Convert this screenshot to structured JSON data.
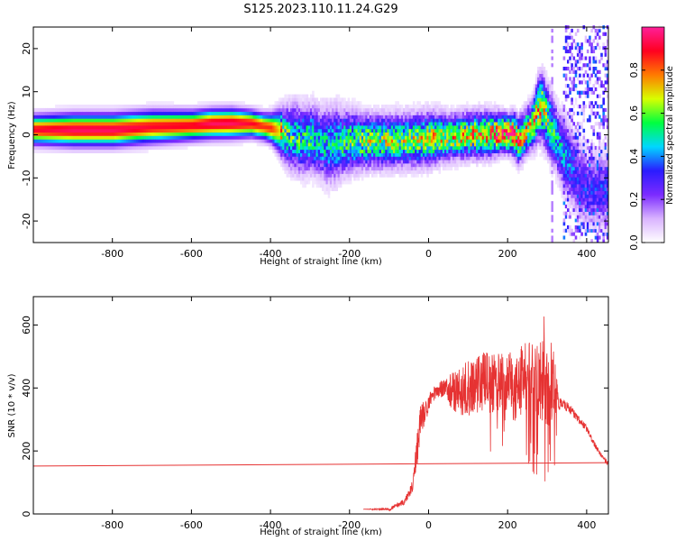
{
  "figure": {
    "title": "S125.2023.110.11.24.G29"
  },
  "chart_data": [
    {
      "type": "heatmap",
      "xlabel": "Height of straight line (km)",
      "ylabel": "Frequency (Hz)",
      "xlim": [
        -1000,
        455
      ],
      "ylim": [
        -25,
        25
      ],
      "xticks": [
        -800,
        -600,
        -400,
        -200,
        0,
        200,
        400
      ],
      "yticks": [
        -20,
        -10,
        0,
        10,
        20
      ],
      "colorbar": {
        "label": "Normalized spectral amplitude",
        "range": [
          0.0,
          1.0
        ],
        "ticks": [
          "0.0",
          "0.2",
          "0.4",
          "0.6",
          "0.8"
        ],
        "colormap": [
          "#ffffff",
          "#d9b3ff",
          "#7b2bff",
          "#2a1cff",
          "#00d7ff",
          "#00ff40",
          "#d8ff00",
          "#ff7a00",
          "#ff0020",
          "#ff1f9a"
        ]
      },
      "ridge": {
        "x": [
          -1000,
          -900,
          -800,
          -700,
          -600,
          -550,
          -500,
          -450,
          -420,
          -400,
          -380,
          -360,
          -340,
          -320,
          -300,
          -280,
          -260,
          -240,
          -220,
          -200,
          -150,
          -100,
          -50,
          0,
          50,
          100,
          150,
          190,
          205,
          215,
          225,
          235,
          245,
          255,
          265,
          275,
          285,
          295,
          305,
          315,
          325,
          340,
          360,
          380,
          400
        ],
        "y": [
          0.8,
          0.8,
          0.8,
          1.5,
          1.8,
          2.2,
          2.3,
          2.2,
          1.6,
          1.2,
          0.5,
          -0.5,
          -1.0,
          -1.5,
          -1.2,
          -2.0,
          -2.8,
          -2.5,
          -2.0,
          -1.8,
          -1.8,
          -1.8,
          -1.6,
          -1.2,
          -0.8,
          -0.5,
          -0.2,
          0.0,
          0.0,
          -0.5,
          -1.5,
          -0.8,
          0.5,
          1.5,
          3.0,
          5.5,
          6.0,
          4.0,
          2.0,
          0.0,
          -2.0,
          -5.0,
          -8.0,
          -11.0,
          -13.0
        ],
        "width": [
          2.0,
          2.2,
          2.2,
          2.2,
          2.0,
          2.0,
          2.0,
          1.8,
          1.8,
          2.0,
          3.0,
          4.0,
          4.5,
          4.5,
          4.5,
          4.5,
          5.0,
          5.0,
          4.5,
          4.0,
          3.5,
          3.5,
          3.5,
          3.5,
          3.0,
          3.0,
          3.0,
          2.5,
          2.5,
          3.0,
          3.0,
          3.0,
          3.0,
          3.0,
          3.5,
          4.0,
          4.5,
          4.5,
          4.5,
          4.5,
          4.5,
          5.0,
          5.0,
          5.0,
          5.0
        ],
        "peak": [
          0.9,
          0.95,
          0.95,
          0.9,
          0.9,
          0.95,
          0.95,
          0.9,
          0.85,
          0.85,
          0.7,
          0.55,
          0.5,
          0.5,
          0.5,
          0.45,
          0.45,
          0.45,
          0.5,
          0.55,
          0.6,
          0.6,
          0.6,
          0.65,
          0.65,
          0.7,
          0.75,
          0.9,
          0.95,
          0.8,
          0.75,
          0.75,
          0.7,
          0.7,
          0.7,
          0.75,
          0.7,
          0.6,
          0.55,
          0.5,
          0.45,
          0.4,
          0.35,
          0.3,
          0.3
        ]
      },
      "noise_band": {
        "x": [
          340,
          455
        ],
        "ylim": [
          -25,
          25
        ],
        "level": 0.25
      },
      "dropout_line": {
        "x": 310,
        "ylim": [
          -25,
          24
        ],
        "level": 0.15
      }
    },
    {
      "type": "line",
      "xlabel": "Height of straight line (km)",
      "ylabel": "SNR (10 * v/v)",
      "xlim": [
        -1000,
        455
      ],
      "ylim": [
        0,
        690
      ],
      "xticks": [
        -800,
        -600,
        -400,
        -200,
        0,
        200,
        400
      ],
      "yticks": [
        0,
        200,
        400,
        600
      ],
      "series": [
        {
          "x": [
            -1000,
            455
          ],
          "y": [
            152,
            163
          ],
          "color": "#e63232"
        },
        {
          "color": "#e63232",
          "x": [
            -165,
            -100,
            -60,
            -40,
            -30,
            -20,
            -10,
            0,
            10,
            20,
            30,
            40,
            50,
            60,
            80,
            100,
            130,
            160,
            200,
            220,
            240,
            260,
            280,
            300,
            315,
            330,
            340,
            360,
            380,
            400,
            420,
            440,
            455
          ],
          "y": [
            15,
            15,
            40,
            90,
            200,
            300,
            320,
            350,
            380,
            390,
            395,
            400,
            395,
            390,
            390,
            400,
            420,
            410,
            420,
            400,
            420,
            430,
            400,
            420,
            410,
            350,
            350,
            330,
            300,
            270,
            220,
            180,
            160
          ],
          "jitter": [
            0,
            5,
            10,
            20,
            60,
            50,
            40,
            30,
            25,
            25,
            25,
            30,
            50,
            60,
            80,
            90,
            100,
            100,
            100,
            110,
            120,
            130,
            140,
            150,
            150,
            20,
            15,
            15,
            12,
            10,
            8,
            8,
            8
          ]
        }
      ]
    }
  ]
}
